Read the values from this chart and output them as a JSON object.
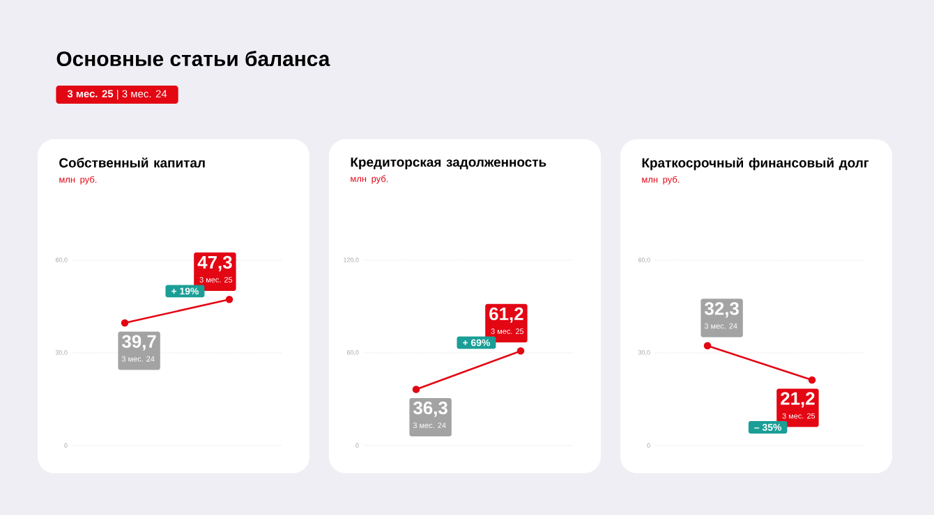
{
  "chart_data": [
    {
      "type": "other",
      "title": "Основные статьи баланса",
      "annotations": [
        "**3 мес. 25** | 3 мес. 24"
      ]
    },
    {
      "type": "line",
      "title": "Собственный капитал",
      "subtitle": "млн руб.",
      "categories": [
        "3 мес. 24",
        "3 мес. 25"
      ],
      "series": [
        {
          "color": "#e30613",
          "values": [
            39.7,
            47.3
          ],
          "value_labels": [
            "39,7",
            "47,3"
          ]
        }
      ],
      "ylim": [
        0,
        60
      ],
      "yticks": [
        {
          "value": 0,
          "label": "0"
        },
        {
          "value": 30,
          "label": "30,0"
        },
        {
          "value": 60,
          "label": "60,0"
        }
      ],
      "grid": "y",
      "marker": "circle",
      "tick_labels": "y",
      "annotations": [
        "+ 19%"
      ]
    },
    {
      "type": "line",
      "title": "Кредиторская задолженность",
      "subtitle": "млн руб.",
      "categories": [
        "3 мес. 24",
        "3 мес. 25"
      ],
      "series": [
        {
          "color": "#e30613",
          "values": [
            36.3,
            61.2
          ],
          "value_labels": [
            "36,3",
            "61,2"
          ]
        }
      ],
      "ylim": [
        0,
        120
      ],
      "yticks": [
        {
          "value": 0,
          "label": "0"
        },
        {
          "value": 60,
          "label": "60,0"
        },
        {
          "value": 120,
          "label": "120,0"
        }
      ],
      "grid": "y",
      "marker": "circle",
      "tick_labels": "y",
      "annotations": [
        "+ 69%"
      ]
    },
    {
      "type": "line",
      "title": "Краткосрочный финансовый долг",
      "subtitle": "млн руб.",
      "categories": [
        "3 мес. 24",
        "3 мес. 25"
      ],
      "series": [
        {
          "color": "#e30613",
          "values": [
            32.3,
            21.2
          ],
          "value_labels": [
            "32,3",
            "21,2"
          ]
        }
      ],
      "ylim": [
        0,
        60
      ],
      "yticks": [
        {
          "value": 0,
          "label": "0"
        },
        {
          "value": 30,
          "label": "30,0"
        },
        {
          "value": 60,
          "label": "60,0"
        }
      ],
      "grid": "y",
      "marker": "circle",
      "tick_labels": "y",
      "annotations": [
        "– 35%"
      ]
    }
  ]
}
